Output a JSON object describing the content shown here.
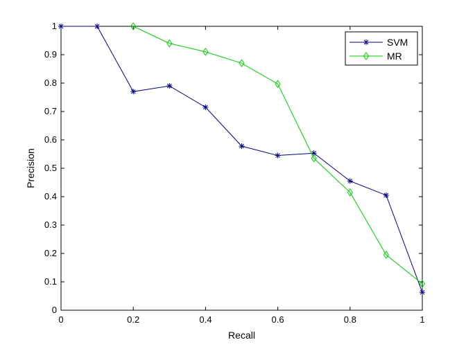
{
  "chart_data": {
    "type": "line",
    "xlabel": "Recall",
    "ylabel": "Precision",
    "xlim": [
      0,
      1
    ],
    "ylim": [
      0,
      1
    ],
    "xticks": [
      "0",
      "0.2",
      "0.4",
      "0.6",
      "0.8",
      "1"
    ],
    "xtick_values": [
      0,
      0.2,
      0.4,
      0.6,
      0.8,
      1
    ],
    "yticks": [
      "0",
      "0.1",
      "0.2",
      "0.3",
      "0.4",
      "0.5",
      "0.6",
      "0.7",
      "0.8",
      "0.9",
      "1"
    ],
    "ytick_values": [
      0,
      0.1,
      0.2,
      0.3,
      0.4,
      0.5,
      0.6,
      0.7,
      0.8,
      0.9,
      1
    ],
    "grid": false,
    "legend_position": "top-right",
    "series": [
      {
        "name": "SVM",
        "color": "#000080",
        "marker": "asterisk",
        "x": [
          0,
          0.1,
          0.2,
          0.3,
          0.4,
          0.5,
          0.6,
          0.7,
          0.8,
          0.9,
          1.0
        ],
        "y": [
          1.0,
          1.0,
          0.77,
          0.79,
          0.715,
          0.578,
          0.545,
          0.553,
          0.455,
          0.405,
          0.063
        ]
      },
      {
        "name": "MR",
        "color": "#00cc00",
        "marker": "diamond",
        "x": [
          0.2,
          0.3,
          0.4,
          0.5,
          0.6,
          0.7,
          0.8,
          0.9,
          1.0
        ],
        "y": [
          1.0,
          0.94,
          0.91,
          0.87,
          0.797,
          0.535,
          0.415,
          0.195,
          0.093
        ]
      }
    ]
  }
}
